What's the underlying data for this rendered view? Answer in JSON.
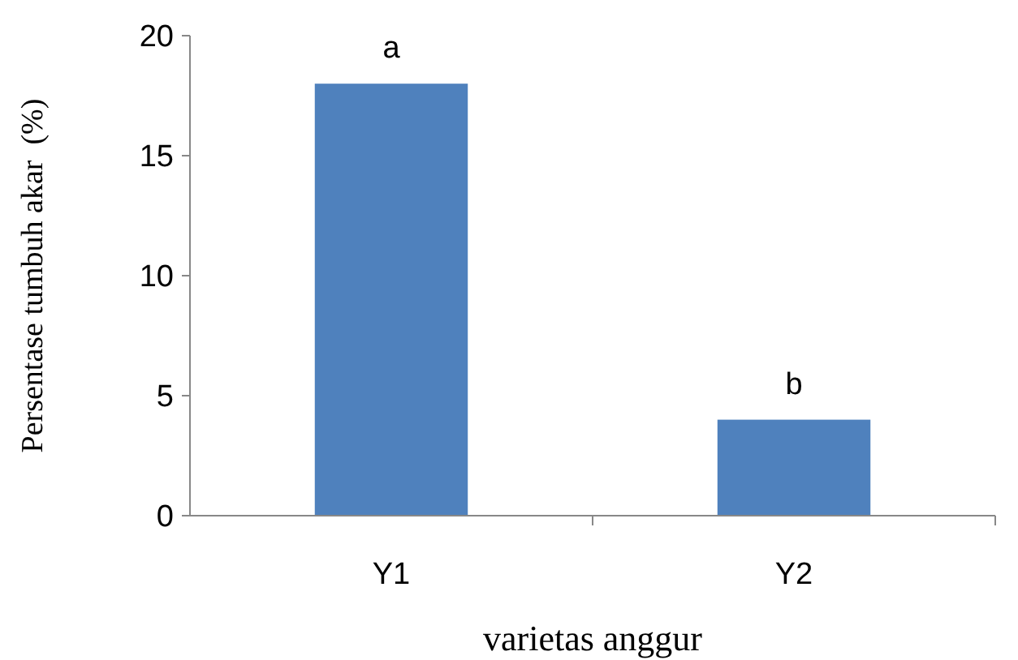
{
  "chart_data": {
    "type": "bar",
    "xlabel": "varietas anggur",
    "ylabel": "Persentase tumbuh akar  (%)",
    "categories": [
      "Y1",
      "Y2"
    ],
    "values": [
      18,
      4
    ],
    "color": "#4f81bd",
    "ylim": [
      0,
      20
    ],
    "yticks": [
      0,
      5,
      10,
      15,
      20
    ],
    "grid": false,
    "annotations": [
      {
        "text": "a",
        "x": "Y1",
        "y": 18
      },
      {
        "text": "b",
        "x": "Y2",
        "y": 4
      }
    ]
  }
}
